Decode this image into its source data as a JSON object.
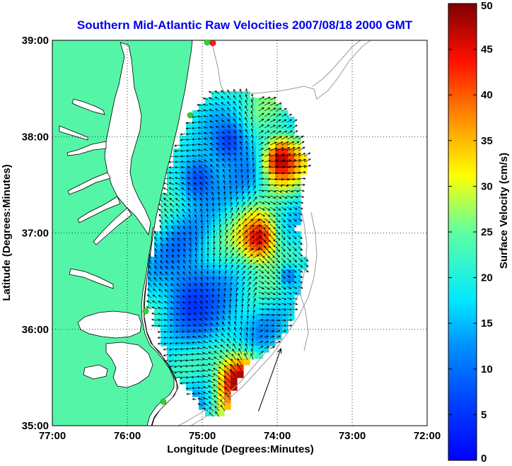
{
  "chart_data": {
    "type": "heatmap",
    "title": "Southern Mid-Atlantic Raw Velocities 2007/08/18 2000 GMT",
    "xlabel": "Longitude (Degrees:Minutes)",
    "ylabel": "Latitude (Degrees:Minutes)",
    "xlim": [
      -77,
      -72
    ],
    "ylim": [
      35,
      39
    ],
    "x_ticks": [
      {
        "value": -77,
        "label": "77:00"
      },
      {
        "value": -76,
        "label": "76:00"
      },
      {
        "value": -75,
        "label": "75:00"
      },
      {
        "value": -74,
        "label": "74:00"
      },
      {
        "value": -73,
        "label": "73:00"
      },
      {
        "value": -72,
        "label": "72:00"
      }
    ],
    "y_ticks": [
      {
        "value": 35,
        "label": "35:00"
      },
      {
        "value": 36,
        "label": "36:00"
      },
      {
        "value": 37,
        "label": "37:00"
      },
      {
        "value": 38,
        "label": "38:00"
      },
      {
        "value": 39,
        "label": "39:00"
      }
    ],
    "grid": true,
    "colorbar": {
      "label": "Surface Velocity (cm/s)",
      "min": 0,
      "max": 50,
      "ticks": [
        0,
        5,
        10,
        15,
        20,
        25,
        30,
        35,
        40,
        45,
        50
      ],
      "colormap": "jet",
      "placement": "right"
    },
    "land_color": "#55f5a8",
    "water_color": "#ffffff",
    "station_color": "#2fd52f",
    "scale_vector": {
      "lon": -74.25,
      "lat": 35.15,
      "dlon": 0.3,
      "dlat": 0.65
    },
    "speed_regions": [
      {
        "name": "northern blue core",
        "lon": -74.65,
        "lat": 37.95,
        "radius": 0.25,
        "speed": 6
      },
      {
        "name": "western blue band",
        "lon": -75.05,
        "lat": 37.55,
        "radius": 0.3,
        "speed": 7
      },
      {
        "name": "southwestern blue area",
        "lon": -75.1,
        "lat": 36.25,
        "radius": 0.45,
        "speed": 5
      },
      {
        "name": "northeastern red core",
        "lon": -73.95,
        "lat": 37.75,
        "radius": 0.25,
        "speed": 48
      },
      {
        "name": "central red core",
        "lon": -74.25,
        "lat": 36.95,
        "radius": 0.22,
        "speed": 46
      },
      {
        "name": "southern red jet",
        "lon": -74.5,
        "lat": 35.45,
        "radius": 0.3,
        "speed": 50
      },
      {
        "name": "eastern blue patch",
        "lon": -73.85,
        "lat": 36.55,
        "radius": 0.12,
        "speed": 10
      }
    ]
  }
}
